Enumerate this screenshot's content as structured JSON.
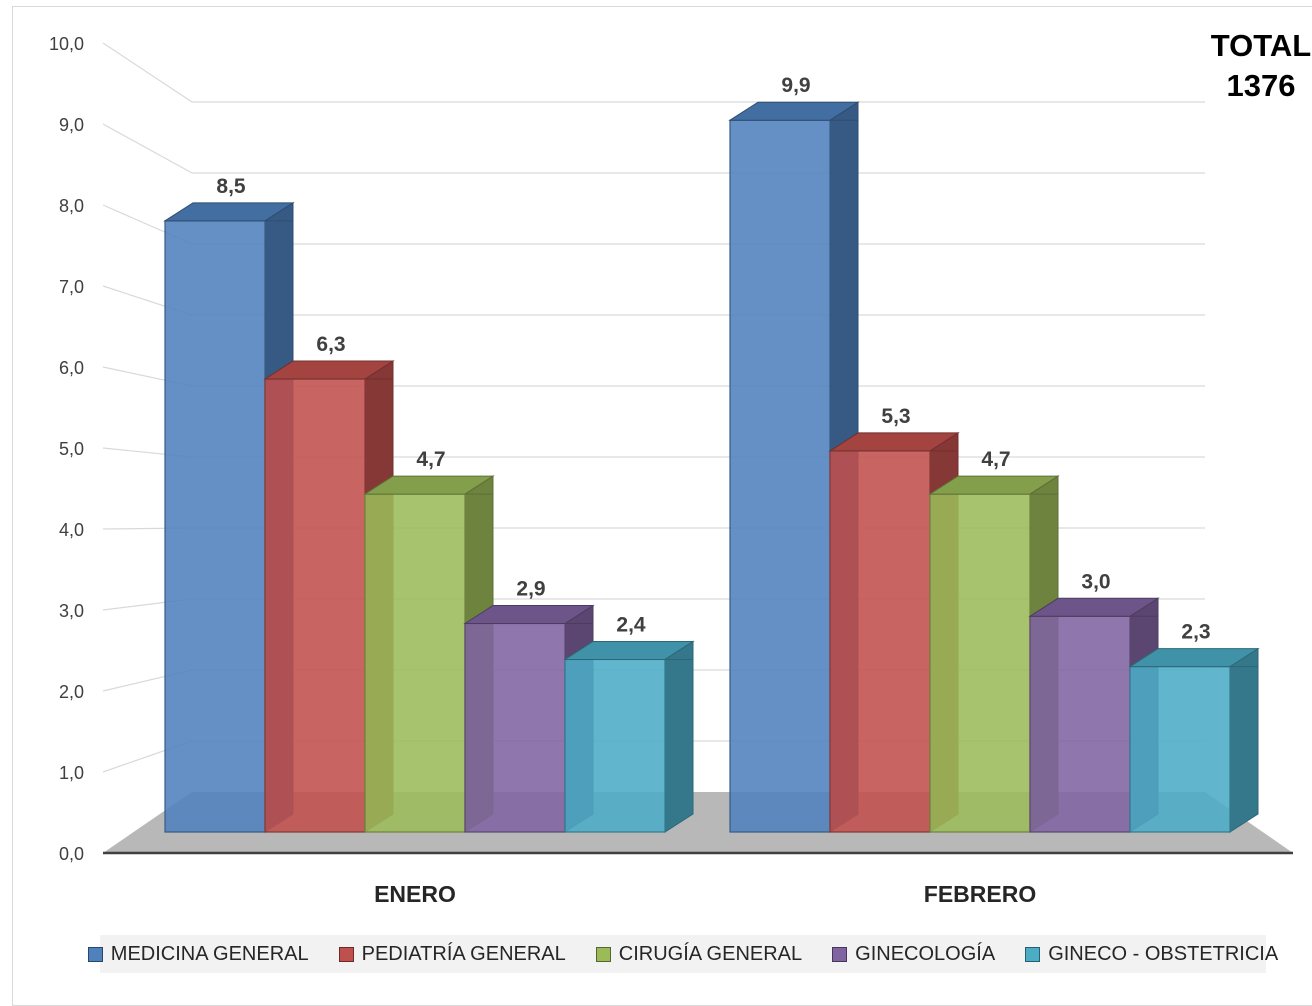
{
  "chart_data": {
    "type": "bar",
    "variant": "3d-clustered-column",
    "categories": [
      "ENERO",
      "FEBRERO"
    ],
    "series": [
      {
        "name": "MEDICINA GENERAL",
        "values": [
          8.5,
          9.9
        ],
        "color": "#4f81bd"
      },
      {
        "name": "PEDIATRÍA GENERAL",
        "values": [
          6.3,
          5.3
        ],
        "color": "#c0504d"
      },
      {
        "name": "CIRUGÍA GENERAL",
        "values": [
          4.7,
          4.7
        ],
        "color": "#9bbb59"
      },
      {
        "name": "GINECOLOGÍA",
        "values": [
          2.9,
          3.0
        ],
        "color": "#8064a2"
      },
      {
        "name": "GINECO - OBSTETRICIA",
        "values": [
          2.4,
          2.3
        ],
        "color": "#4bacc6"
      }
    ],
    "value_labels": {
      "ENERO": [
        "8,5",
        "6,3",
        "4,7",
        "2,9",
        "2,4"
      ],
      "FEBRERO": [
        "9,9",
        "5,3",
        "4,7",
        "3,0",
        "2,3"
      ]
    },
    "ylim": [
      0,
      10
    ],
    "yticks": [
      "0,0",
      "1,0",
      "2,0",
      "3,0",
      "4,0",
      "5,0",
      "6,0",
      "7,0",
      "8,0",
      "9,0",
      "10,0"
    ],
    "grid": true,
    "legend_position": "bottom",
    "annotation": {
      "line1": "TOTAL",
      "line2": "1376"
    }
  }
}
